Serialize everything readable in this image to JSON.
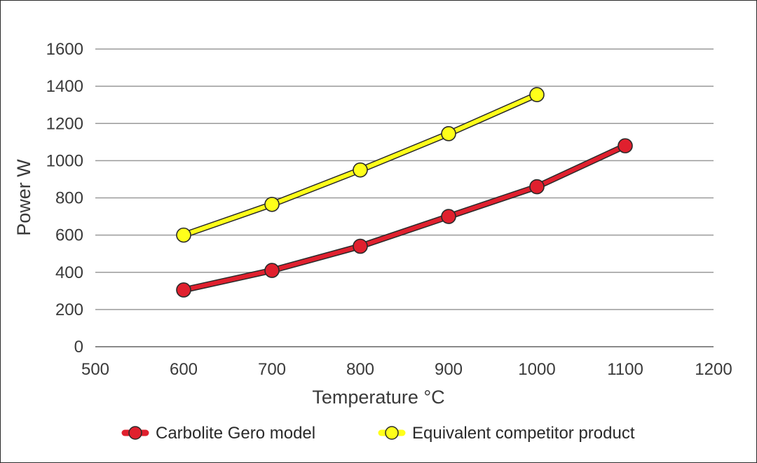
{
  "chart_data": {
    "type": "line",
    "title": "",
    "xlabel": "Temperature °C",
    "ylabel": "Power W",
    "xlim": [
      500,
      1200
    ],
    "ylim": [
      0,
      1600
    ],
    "x_ticks": [
      500,
      600,
      700,
      800,
      900,
      1000,
      1100,
      1200
    ],
    "y_ticks": [
      0,
      200,
      400,
      600,
      800,
      1000,
      1200,
      1400,
      1600
    ],
    "grid": "horizontal",
    "legend_position": "bottom",
    "series": [
      {
        "name": "Carbolite Gero model",
        "color": "#e0202e",
        "x": [
          600,
          700,
          800,
          900,
          1000,
          1100
        ],
        "y": [
          305,
          410,
          540,
          700,
          860,
          1080
        ]
      },
      {
        "name": "Equivalent competitor product",
        "color": "#ffff1a",
        "x": [
          600,
          700,
          800,
          900,
          1000
        ],
        "y": [
          600,
          765,
          950,
          1145,
          1355
        ]
      }
    ]
  }
}
